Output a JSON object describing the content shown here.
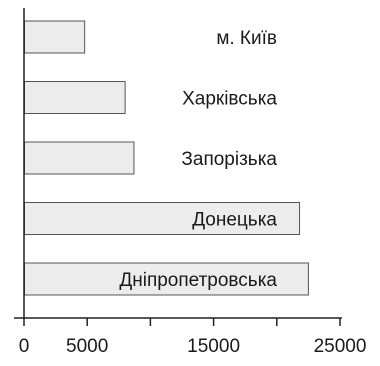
{
  "chart_data": {
    "type": "bar",
    "orientation": "horizontal",
    "categories": [
      "м. Київ",
      "Харківська",
      "Запорізька",
      "Донецька",
      "Дніпропетровська"
    ],
    "values": [
      4800,
      8000,
      8700,
      21800,
      22500
    ],
    "xlim": [
      0,
      25000
    ],
    "xticks_major": [
      0,
      5000,
      15000,
      25000
    ],
    "xticks_minor": [
      10000,
      20000
    ],
    "grid": false,
    "legend": "none",
    "colors": {
      "bar_fill": "#ececec",
      "bar_stroke": "#555555",
      "axis": "#222222"
    }
  }
}
